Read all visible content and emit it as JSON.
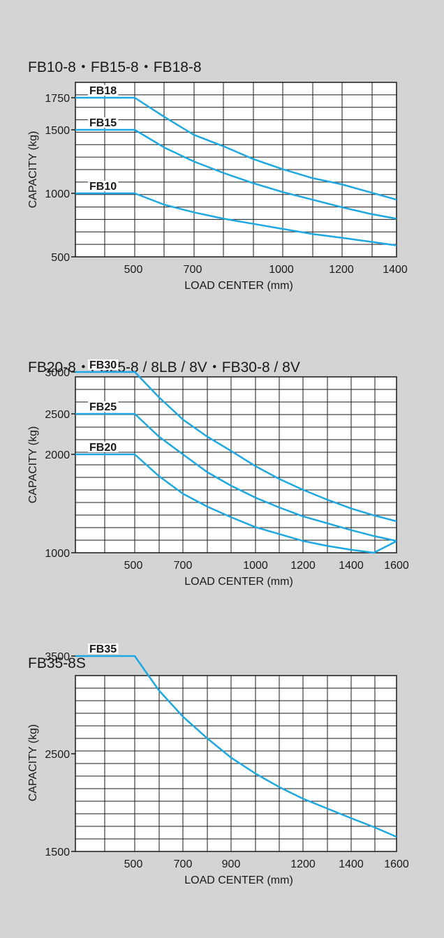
{
  "chart_data": [
    {
      "type": "line",
      "title": "FB10-8・FB15-8・FB18-8",
      "xlabel": "LOAD CENTER (mm)",
      "ylabel": "CAPACITY (kg)",
      "xticks": [
        500,
        700,
        1000,
        1200,
        1400
      ],
      "yticks": [
        500,
        1000,
        1500,
        1750
      ],
      "ylim": [
        500,
        1750
      ],
      "grid": true,
      "line_color": "#1ea7e1",
      "series": [
        {
          "name": "FB18",
          "x": [
            500,
            600,
            700,
            800,
            900,
            1000,
            1100,
            1200,
            1300,
            1400
          ],
          "y": [
            1750,
            1600,
            1460,
            1370,
            1270,
            1190,
            1120,
            1070,
            1010,
            950
          ]
        },
        {
          "name": "FB15",
          "x": [
            500,
            600,
            700,
            800,
            900,
            1000,
            1100,
            1200,
            1300,
            1400
          ],
          "y": [
            1500,
            1360,
            1250,
            1160,
            1080,
            1010,
            950,
            890,
            840,
            800
          ]
        },
        {
          "name": "FB10",
          "x": [
            500,
            600,
            700,
            800,
            900,
            1000,
            1100,
            1200,
            1300,
            1400
          ],
          "y": [
            1000,
            910,
            850,
            800,
            760,
            720,
            680,
            650,
            620,
            590
          ]
        }
      ]
    },
    {
      "type": "line",
      "title": "FB20-8・FB25-8 / 8LB / 8V・FB30-8 / 8V",
      "xlabel": "LOAD CENTER (mm)",
      "ylabel": "CAPACITY (kg)",
      "xticks": [
        500,
        700,
        1000,
        1200,
        1400,
        1600
      ],
      "yticks": [
        1000,
        2000,
        2500,
        3000
      ],
      "ylim": [
        1000,
        3000
      ],
      "grid": true,
      "line_color": "#1ea7e1",
      "series": [
        {
          "name": "FB30",
          "x": [
            500,
            600,
            700,
            800,
            900,
            1000,
            1100,
            1200,
            1300,
            1400,
            1500,
            1600
          ],
          "y": [
            3000,
            2700,
            2430,
            2220,
            2040,
            1880,
            1750,
            1640,
            1540,
            1450,
            1380,
            1320
          ]
        },
        {
          "name": "FB25",
          "x": [
            500,
            600,
            700,
            800,
            900,
            1000,
            1100,
            1200,
            1300,
            1400,
            1500,
            1600
          ],
          "y": [
            2500,
            2220,
            2000,
            1820,
            1680,
            1560,
            1460,
            1370,
            1300,
            1230,
            1170,
            1120
          ]
        },
        {
          "name": "FB20",
          "x": [
            500,
            600,
            700,
            800,
            900,
            1000,
            1100,
            1200,
            1300,
            1400,
            1500,
            1600
          ],
          "y": [
            2000,
            1780,
            1600,
            1470,
            1360,
            1260,
            1190,
            1120,
            1070,
            1030,
            1000,
            980
          ]
        }
      ]
    },
    {
      "type": "line",
      "title": "FB35-8S",
      "xlabel": "LOAD CENTER (mm)",
      "ylabel": "CAPACITY (kg)",
      "xticks": [
        500,
        700,
        900,
        1200,
        1400,
        1600
      ],
      "yticks": [
        1500,
        2500,
        3500
      ],
      "ylim": [
        1500,
        3500
      ],
      "grid": true,
      "line_color": "#1ea7e1",
      "series": [
        {
          "name": "FB35",
          "x": [
            500,
            600,
            700,
            800,
            900,
            1000,
            1100,
            1200,
            1300,
            1400,
            1500,
            1600
          ],
          "y": [
            3500,
            3150,
            2880,
            2660,
            2460,
            2300,
            2160,
            2040,
            1940,
            1840,
            1750,
            1650
          ]
        }
      ]
    }
  ]
}
